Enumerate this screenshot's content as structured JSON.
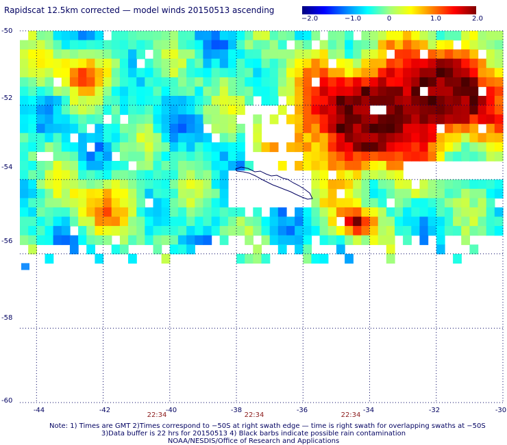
{
  "title": "Rapidscat 12.5km corrected — model winds 20150513 ascending",
  "colorbar": {
    "ticks": [
      "−2.0",
      "−1.0",
      "0",
      "1.0",
      "2.0"
    ],
    "stops": [
      "#000080",
      "#0000ff",
      "#0080ff",
      "#00ffff",
      "#a0ff80",
      "#ffff00",
      "#ff8000",
      "#ff0000",
      "#800000"
    ]
  },
  "lat_labels": [
    "-50",
    "-52",
    "-54",
    "-56",
    "-58",
    "-60"
  ],
  "lon_labels": [
    "-44",
    "-42",
    "-40",
    "-38",
    "-36",
    "-34",
    "-32",
    "-30"
  ],
  "time_labels": [
    "22:34",
    "22:34",
    "22:34"
  ],
  "notes": {
    "line1": "Note: 1) Times are GMT 2)Times correspond to −50S at right swath edge — time is right swath for overlapping swaths at −50S",
    "line2": "3)Data buffer is 22 hrs for 20150513 4) Black barbs indicate possible rain contamination",
    "line3": "NOAA/NESDIS/Office of Research and Applications"
  },
  "map": {
    "lon_range": [
      -44.5,
      -30
    ],
    "lat_range": [
      -60,
      -50
    ],
    "grid": true,
    "coastline": "South Georgia",
    "colors": {
      "grid": "#000060",
      "coast": "#000060",
      "missing": "#ffffff"
    }
  }
}
